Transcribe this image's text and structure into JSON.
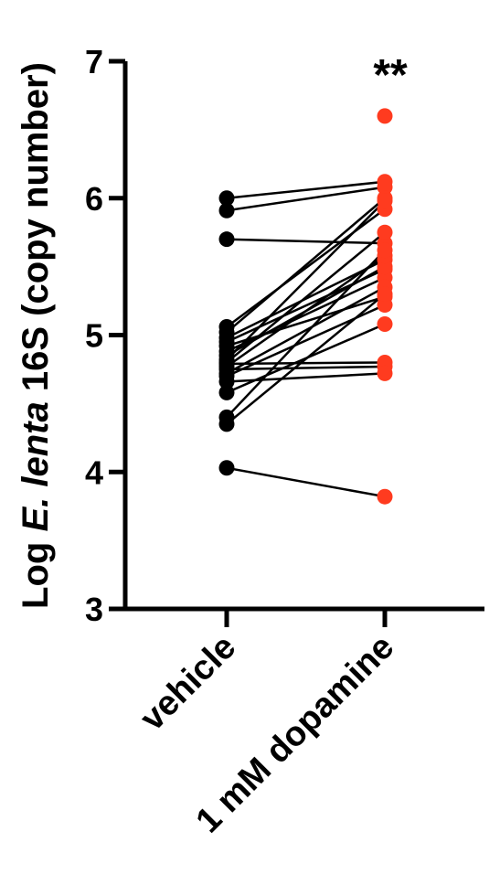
{
  "chart_data": {
    "type": "scatter",
    "subtype": "paired",
    "ylabel_parts": [
      "Log ",
      "E. lenta",
      " 16S (copy number)"
    ],
    "ylim": [
      3,
      7
    ],
    "yticks": [
      "3",
      "4",
      "5",
      "6",
      "7"
    ],
    "categories": [
      "vehicle",
      "1 mM dopamine"
    ],
    "colors": {
      "vehicle": "#000000",
      "1 mM dopamine": "#ff3b1f",
      "line": "#000000"
    },
    "annotation": "**",
    "pairs": [
      [
        6.0,
        6.12
      ],
      [
        5.91,
        6.08
      ],
      [
        5.7,
        5.67
      ],
      [
        5.06,
        5.92
      ],
      [
        5.02,
        6.0
      ],
      [
        4.98,
        5.55
      ],
      [
        4.95,
        5.48
      ],
      [
        4.92,
        5.28
      ],
      [
        4.88,
        5.42
      ],
      [
        4.85,
        5.5
      ],
      [
        4.82,
        5.98
      ],
      [
        4.8,
        5.75
      ],
      [
        4.79,
        4.8
      ],
      [
        4.77,
        5.58
      ],
      [
        4.75,
        4.77
      ],
      [
        4.72,
        5.35
      ],
      [
        4.7,
        5.22
      ],
      [
        4.66,
        4.72
      ],
      [
        4.58,
        5.08
      ],
      [
        4.4,
        5.62
      ],
      [
        4.35,
        5.3
      ],
      [
        4.03,
        3.82
      ]
    ],
    "extra_points": {
      "1 mM dopamine": [
        6.6
      ]
    }
  }
}
